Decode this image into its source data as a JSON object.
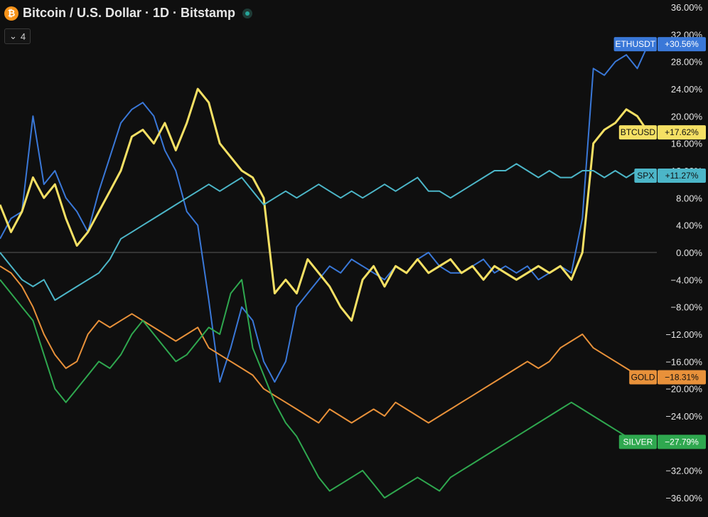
{
  "header": {
    "title": "Bitcoin / U.S. Dollar · 1D · Bitstamp",
    "logo_glyph": "₿",
    "collapse_count": "4"
  },
  "colors": {
    "background": "#0f0f0f",
    "ethusdt": "#3a78d8",
    "btcusd": "#f5e064",
    "spx": "#4cb6c8",
    "gold": "#e8913a",
    "silver": "#2fa84f",
    "zero_line": "#5a5a5a"
  },
  "chart_data": {
    "type": "line",
    "title": "Bitcoin / U.S. Dollar · 1D · Bitstamp",
    "ylabel": "",
    "xlabel": "",
    "ylim": [
      -38,
      36
    ],
    "grid": false,
    "y_ticks": [
      "36.00%",
      "32.00%",
      "28.00%",
      "24.00%",
      "20.00%",
      "16.00%",
      "12.00%",
      "8.00%",
      "4.00%",
      "0.00%",
      "−4.00%",
      "−8.00%",
      "−12.00%",
      "−16.00%",
      "−20.00%",
      "−24.00%",
      "−28.00%",
      "−32.00%",
      "−36.00%"
    ],
    "y_tick_values": [
      36,
      32,
      28,
      24,
      20,
      16,
      12,
      8,
      4,
      0,
      -4,
      -8,
      -12,
      -16,
      -20,
      -24,
      -28,
      -32,
      -36
    ],
    "x_count": 60,
    "series": [
      {
        "name": "ETHUSDT",
        "last_label": "+30.56%",
        "color_key": "ethusdt",
        "values": [
          2,
          5,
          6,
          20,
          10,
          12,
          8,
          6,
          3,
          9,
          14,
          19,
          21,
          22,
          20,
          15,
          12,
          6,
          4,
          -7,
          -19,
          -14,
          -8,
          -10,
          -16,
          -19,
          -16,
          -8,
          -6,
          -4,
          -2,
          -3,
          -1,
          -2,
          -3,
          -4,
          -2,
          -3,
          -1,
          0,
          -2,
          -3,
          -3,
          -2,
          -1,
          -3,
          -2,
          -3,
          -2,
          -4,
          -3,
          -2,
          -3,
          5,
          27,
          26,
          28,
          29,
          27,
          30.56
        ]
      },
      {
        "name": "BTCUSD",
        "last_label": "+17.62%",
        "color_key": "btcusd",
        "values": [
          7,
          3,
          6,
          11,
          8,
          10,
          5,
          1,
          3,
          6,
          9,
          12,
          17,
          18,
          16,
          19,
          15,
          19,
          24,
          22,
          16,
          14,
          12,
          11,
          8,
          -6,
          -4,
          -6,
          -1,
          -3,
          -5,
          -8,
          -10,
          -4,
          -2,
          -5,
          -2,
          -3,
          -1,
          -3,
          -2,
          -1,
          -3,
          -2,
          -4,
          -2,
          -3,
          -4,
          -3,
          -2,
          -3,
          -2,
          -4,
          0,
          16,
          18,
          19,
          21,
          20,
          17.62
        ]
      },
      {
        "name": "SPX",
        "last_label": "+11.27%",
        "color_key": "spx",
        "values": [
          0,
          -2,
          -4,
          -5,
          -4,
          -7,
          -6,
          -5,
          -4,
          -3,
          -1,
          2,
          3,
          4,
          5,
          6,
          7,
          8,
          9,
          10,
          9,
          10,
          11,
          9,
          7,
          8,
          9,
          8,
          9,
          10,
          9,
          8,
          9,
          8,
          9,
          10,
          9,
          10,
          11,
          9,
          9,
          8,
          9,
          10,
          11,
          12,
          12,
          13,
          12,
          11,
          12,
          11,
          11,
          12,
          12,
          11,
          12,
          11,
          12,
          11.27
        ]
      },
      {
        "name": "GOLD",
        "last_label": "−18.31%",
        "color_key": "gold",
        "values": [
          -2,
          -3,
          -5,
          -8,
          -12,
          -15,
          -17,
          -16,
          -12,
          -10,
          -11,
          -10,
          -9,
          -10,
          -11,
          -12,
          -13,
          -12,
          -11,
          -14,
          -15,
          -16,
          -17,
          -18,
          -20,
          -21,
          -22,
          -23,
          -24,
          -25,
          -23,
          -24,
          -25,
          -24,
          -23,
          -24,
          -22,
          -23,
          -24,
          -25,
          -24,
          -23,
          -22,
          -21,
          -20,
          -19,
          -18,
          -17,
          -16,
          -17,
          -16,
          -14,
          -13,
          -12,
          -14,
          -15,
          -16,
          -17,
          -18,
          -18.31
        ]
      },
      {
        "name": "SILVER",
        "last_label": "−27.79%",
        "color_key": "silver",
        "values": [
          -4,
          -6,
          -8,
          -10,
          -15,
          -20,
          -22,
          -20,
          -18,
          -16,
          -17,
          -15,
          -12,
          -10,
          -12,
          -14,
          -16,
          -15,
          -13,
          -11,
          -12,
          -6,
          -4,
          -14,
          -18,
          -22,
          -25,
          -27,
          -30,
          -33,
          -35,
          -34,
          -33,
          -32,
          -34,
          -36,
          -35,
          -34,
          -33,
          -34,
          -35,
          -33,
          -32,
          -31,
          -30,
          -29,
          -28,
          -27,
          -26,
          -25,
          -24,
          -23,
          -22,
          -23,
          -24,
          -25,
          -26,
          -27,
          -27,
          -27.79
        ]
      }
    ]
  }
}
